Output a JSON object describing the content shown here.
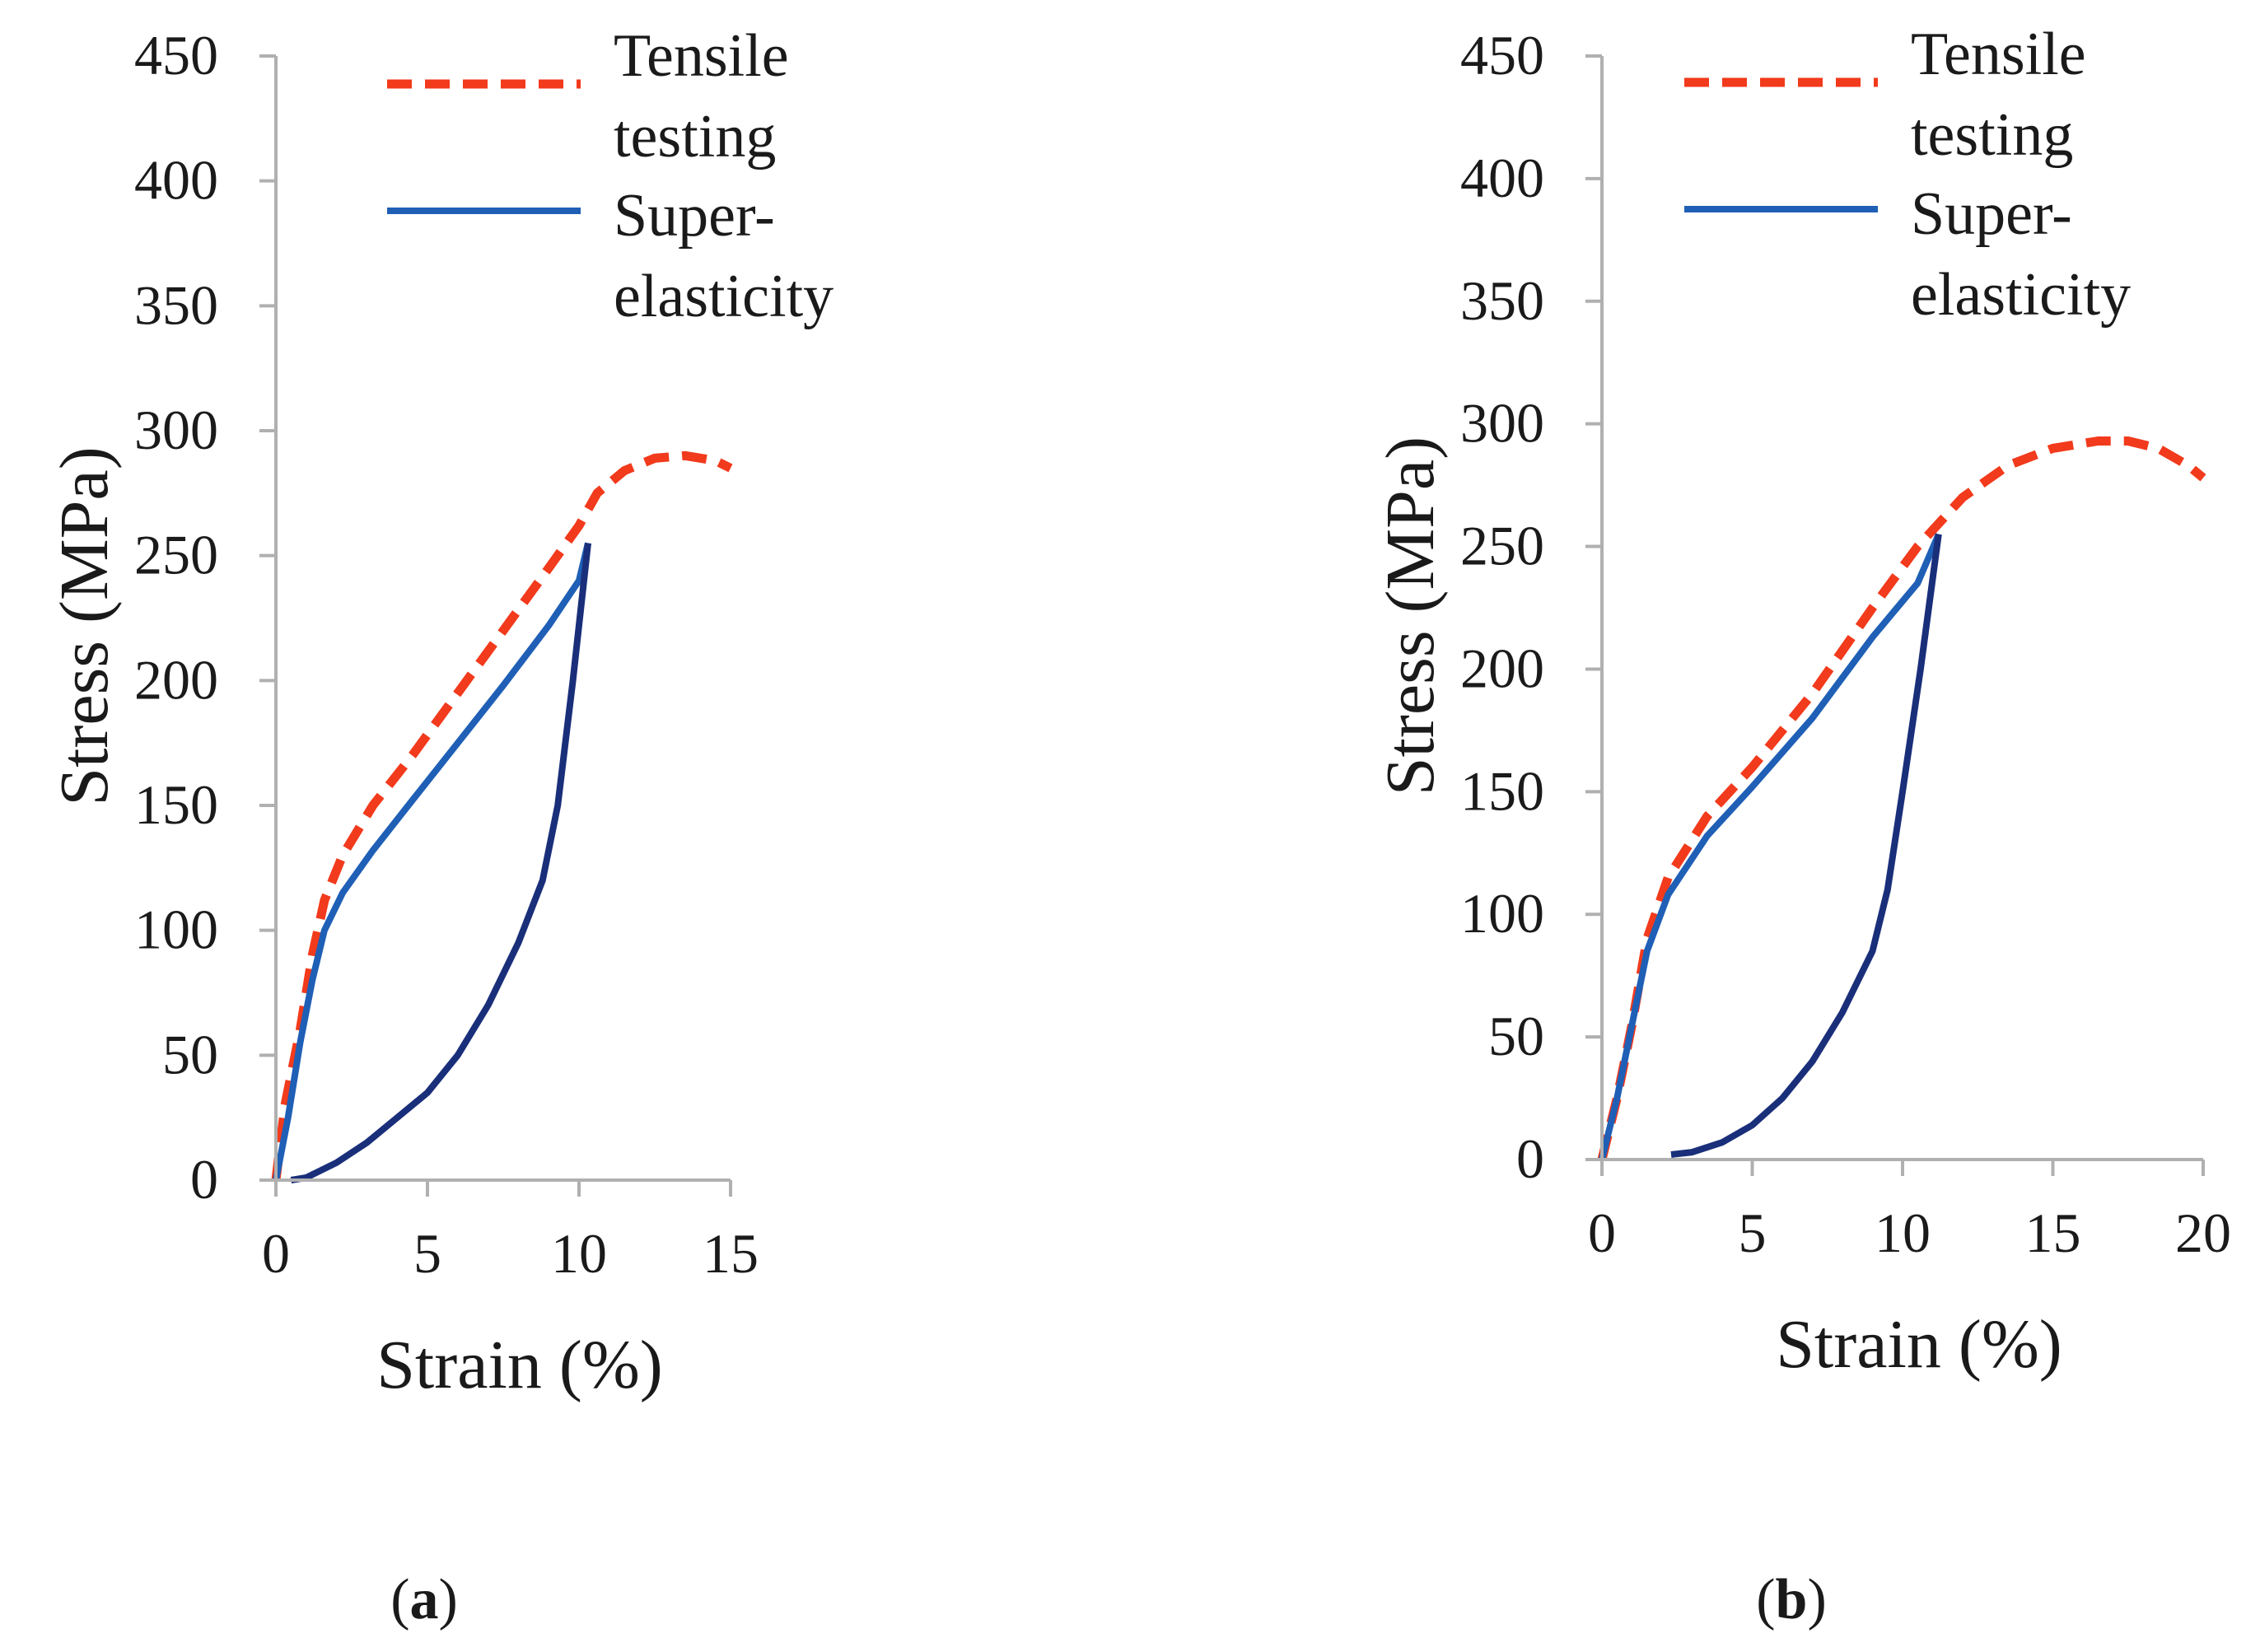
{
  "colors": {
    "tensile": "#f23a1c",
    "superelastic_loading": "#1f5fb6",
    "superelastic_unloading": "#1a2f7a",
    "axis": "#b0b0b0",
    "text": "#1a1a1a"
  },
  "chart_data": [
    {
      "type": "line",
      "panel": "a",
      "panel_label": {
        "open": "(",
        "letter": "a",
        "close": ")"
      },
      "xlabel": "Strain (%)",
      "ylabel": "Stress (MPa)",
      "xlim": [
        0,
        15
      ],
      "ylim": [
        0,
        450
      ],
      "xticks": [
        "0",
        "5",
        "10",
        "15"
      ],
      "yticks": [
        "0",
        "50",
        "100",
        "150",
        "200",
        "250",
        "300",
        "350",
        "400",
        "450"
      ],
      "grid": false,
      "legend_position": "top-right",
      "legend_entries": [
        {
          "lines": [
            "Tensile",
            "testing"
          ],
          "style": "dashed",
          "color_key": "tensile"
        },
        {
          "lines": [
            "Super-",
            "elasticity"
          ],
          "style": "solid",
          "color_key": "superelastic_loading"
        }
      ],
      "series": [
        {
          "name": "Tensile testing",
          "style": "dashed",
          "color_key": "tensile",
          "points": [
            [
              0,
              0
            ],
            [
              0.3,
              30
            ],
            [
              0.8,
              60
            ],
            [
              1.2,
              90
            ],
            [
              1.6,
              112
            ],
            [
              2.2,
              130
            ],
            [
              3.2,
              150
            ],
            [
              4.5,
              170
            ],
            [
              6,
              195
            ],
            [
              7.5,
              220
            ],
            [
              9,
              245
            ],
            [
              10,
              262
            ],
            [
              10.6,
              275
            ],
            [
              11.5,
              284
            ],
            [
              12.5,
              289
            ],
            [
              13.5,
              290
            ],
            [
              14.5,
              288
            ],
            [
              15,
              285
            ]
          ]
        },
        {
          "name": "Super-elasticity (loading)",
          "style": "solid",
          "color_key": "superelastic_loading",
          "points": [
            [
              0,
              0
            ],
            [
              0.4,
              25
            ],
            [
              0.8,
              55
            ],
            [
              1.2,
              80
            ],
            [
              1.6,
              100
            ],
            [
              2.2,
              115
            ],
            [
              3.2,
              132
            ],
            [
              4.5,
              152
            ],
            [
              6,
              175
            ],
            [
              7.5,
              198
            ],
            [
              9,
              222
            ],
            [
              10,
              240
            ],
            [
              10.3,
              255
            ]
          ]
        },
        {
          "name": "Super-elasticity (unloading)",
          "style": "solid",
          "color_key": "superelastic_unloading",
          "points": [
            [
              10.3,
              255
            ],
            [
              9.8,
              200
            ],
            [
              9.3,
              150
            ],
            [
              8.8,
              120
            ],
            [
              8,
              95
            ],
            [
              7,
              70
            ],
            [
              6,
              50
            ],
            [
              5,
              35
            ],
            [
              4,
              25
            ],
            [
              3,
              15
            ],
            [
              2,
              7
            ],
            [
              1,
              1
            ],
            [
              0.5,
              0
            ]
          ]
        }
      ]
    },
    {
      "type": "line",
      "panel": "b",
      "panel_label": {
        "open": "(",
        "letter": "b",
        "close": ")"
      },
      "xlabel": "Strain (%)",
      "ylabel": "Stress (MPa)",
      "xlim": [
        0,
        20
      ],
      "ylim": [
        0,
        450
      ],
      "xticks": [
        "0",
        "5",
        "10",
        "15",
        "20"
      ],
      "yticks": [
        "0",
        "50",
        "100",
        "150",
        "200",
        "250",
        "300",
        "350",
        "400",
        "450"
      ],
      "grid": false,
      "legend_position": "top-right",
      "legend_entries": [
        {
          "lines": [
            "Tensile",
            "testing"
          ],
          "style": "dashed",
          "color_key": "tensile"
        },
        {
          "lines": [
            "Super-",
            "elasticity"
          ],
          "style": "solid",
          "color_key": "superelastic_loading"
        }
      ],
      "series": [
        {
          "name": "Tensile testing",
          "style": "dashed",
          "color_key": "tensile",
          "points": [
            [
              0,
              0
            ],
            [
              0.5,
              25
            ],
            [
              1,
              55
            ],
            [
              1.5,
              90
            ],
            [
              2.2,
              115
            ],
            [
              3.5,
              140
            ],
            [
              5,
              160
            ],
            [
              7,
              190
            ],
            [
              9,
              225
            ],
            [
              10.5,
              250
            ],
            [
              12,
              270
            ],
            [
              13.5,
              283
            ],
            [
              15,
              290
            ],
            [
              16.5,
              293
            ],
            [
              17.5,
              293
            ],
            [
              18.5,
              290
            ],
            [
              19.5,
              283
            ],
            [
              20,
              278
            ]
          ]
        },
        {
          "name": "Super-elasticity (loading)",
          "style": "solid",
          "color_key": "superelastic_loading",
          "points": [
            [
              0,
              0
            ],
            [
              0.5,
              25
            ],
            [
              1,
              55
            ],
            [
              1.5,
              85
            ],
            [
              2.2,
              108
            ],
            [
              3.5,
              132
            ],
            [
              5,
              152
            ],
            [
              7,
              180
            ],
            [
              9,
              213
            ],
            [
              10.5,
              235
            ],
            [
              11.2,
              255
            ]
          ]
        },
        {
          "name": "Super-elasticity (unloading)",
          "style": "solid",
          "color_key": "superelastic_unloading",
          "points": [
            [
              11.2,
              255
            ],
            [
              10.6,
              200
            ],
            [
              10,
              150
            ],
            [
              9.5,
              110
            ],
            [
              9,
              85
            ],
            [
              8,
              60
            ],
            [
              7,
              40
            ],
            [
              6,
              25
            ],
            [
              5,
              14
            ],
            [
              4,
              7
            ],
            [
              3,
              3
            ],
            [
              2.3,
              2
            ]
          ]
        }
      ]
    }
  ]
}
